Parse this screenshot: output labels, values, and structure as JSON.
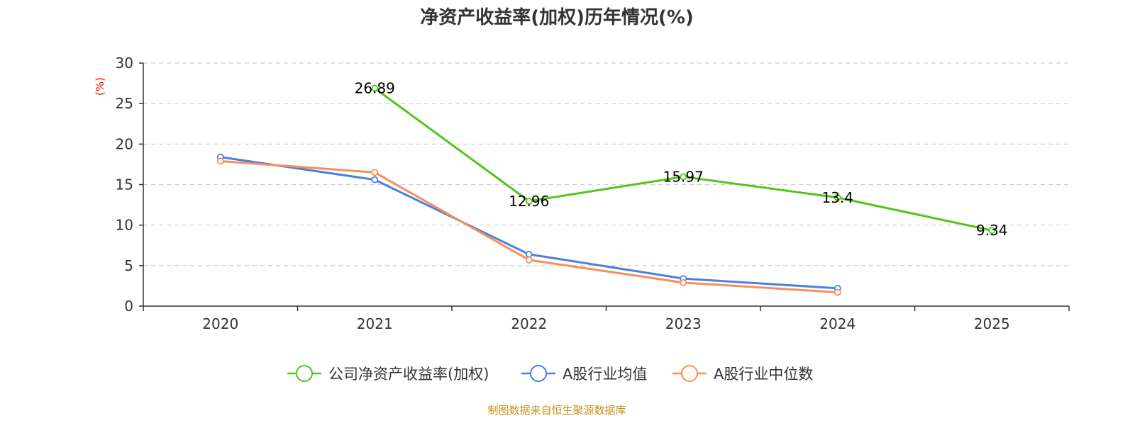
{
  "chart_data": {
    "type": "line",
    "title": "净资产收益率(加权)历年情况(%)",
    "ylabel": "(%)",
    "xlabel": "",
    "categories": [
      "2020",
      "2021",
      "2022",
      "2023",
      "2024",
      "2025"
    ],
    "ylim": [
      0,
      30
    ],
    "yticks": [
      0,
      5,
      10,
      15,
      20,
      25,
      30
    ],
    "grid": true,
    "legend_position": "bottom-center",
    "series": [
      {
        "name": "公司净资产收益率(加权)",
        "color": "#52c41a",
        "values": [
          null,
          26.89,
          12.96,
          15.97,
          13.4,
          9.34
        ],
        "labels": [
          "",
          "26.89",
          "12.96",
          "15.97",
          "13.4",
          "9.34"
        ]
      },
      {
        "name": "A股行业均值",
        "color": "#4a7fe0",
        "values": [
          18.4,
          15.6,
          6.4,
          3.4,
          2.2,
          null
        ]
      },
      {
        "name": "A股行业中位数",
        "color": "#f88e58",
        "values": [
          17.9,
          16.5,
          5.7,
          2.9,
          1.7,
          null
        ]
      }
    ],
    "source": "制图数据来自恒生聚源数据库",
    "colors": {
      "title": "#333333",
      "axis": "#333333",
      "grid": "#cccccc",
      "unit_label": "#ff0000",
      "source": "#c8901a"
    }
  }
}
